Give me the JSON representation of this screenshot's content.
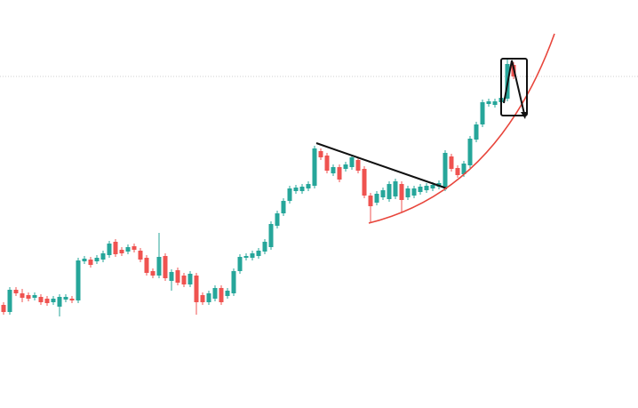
{
  "chart_data": {
    "type": "candlestick",
    "up_color": "#26a69a",
    "down_color": "#ef5350",
    "ylim": [
      0,
      459
    ],
    "open": [
      116,
      108,
      133,
      129,
      127,
      124,
      125,
      123,
      119,
      114,
      122,
      123,
      121,
      165,
      167,
      165,
      167,
      172,
      187,
      178,
      176,
      182,
      177,
      169,
      154,
      149,
      171,
      143,
      155,
      149,
      139,
      149,
      127,
      119,
      123,
      135,
      126,
      129,
      154,
      169,
      169,
      171,
      176,
      181,
      205,
      219,
      233,
      244,
      244,
      247,
      250,
      289,
      284,
      264,
      271,
      269,
      271,
      279,
      269,
      239,
      231,
      237,
      235,
      238,
      252,
      237,
      239,
      243,
      245,
      247,
      249,
      247,
      283,
      270,
      263,
      273,
      302,
      319,
      342,
      341,
      344,
      348,
      386
    ],
    "high": [
      119,
      136,
      136,
      134,
      130,
      130,
      128,
      126,
      126,
      128,
      128,
      126,
      169,
      171,
      170,
      172,
      177,
      188,
      190,
      181,
      184,
      185,
      180,
      172,
      157,
      197,
      174,
      156,
      158,
      152,
      154,
      152,
      130,
      132,
      138,
      138,
      135,
      157,
      173,
      174,
      177,
      180,
      190,
      210,
      222,
      236,
      250,
      251,
      252,
      255,
      295,
      292,
      287,
      274,
      274,
      277,
      285,
      282,
      272,
      242,
      244,
      248,
      255,
      258,
      255,
      250,
      250,
      252,
      253,
      254,
      256,
      290,
      286,
      273,
      278,
      306,
      322,
      347,
      348,
      348,
      352,
      392,
      389
    ],
    "low": [
      105,
      105,
      126,
      119,
      120,
      121,
      116,
      115,
      116,
      103,
      119,
      118,
      118,
      162,
      158,
      162,
      164,
      169,
      170,
      171,
      173,
      175,
      164,
      149,
      146,
      146,
      143,
      132,
      138,
      136,
      136,
      105,
      116,
      116,
      120,
      116,
      123,
      126,
      151,
      166,
      166,
      168,
      173,
      178,
      202,
      216,
      230,
      241,
      241,
      244,
      247,
      279,
      264,
      261,
      254,
      266,
      268,
      264,
      236,
      209,
      228,
      234,
      232,
      235,
      220,
      234,
      236,
      240,
      242,
      244,
      246,
      244,
      266,
      259,
      260,
      270,
      299,
      316,
      339,
      338,
      341,
      345,
      370
    ],
    "close": [
      108,
      133,
      129,
      124,
      123,
      127,
      119,
      118,
      123,
      125,
      125,
      121,
      166,
      168,
      161,
      169,
      174,
      185,
      173,
      174,
      181,
      178,
      167,
      152,
      149,
      170,
      146,
      153,
      141,
      139,
      151,
      119,
      119,
      129,
      135,
      119,
      132,
      154,
      170,
      171,
      174,
      177,
      187,
      207,
      219,
      233,
      247,
      248,
      249,
      252,
      292,
      282,
      267,
      271,
      257,
      274,
      282,
      267,
      239,
      227,
      241,
      245,
      252,
      255,
      234,
      247,
      247,
      249,
      250,
      251,
      253,
      287,
      269,
      262,
      275,
      303,
      319,
      344,
      345,
      345,
      349,
      387,
      373
    ]
  }
}
